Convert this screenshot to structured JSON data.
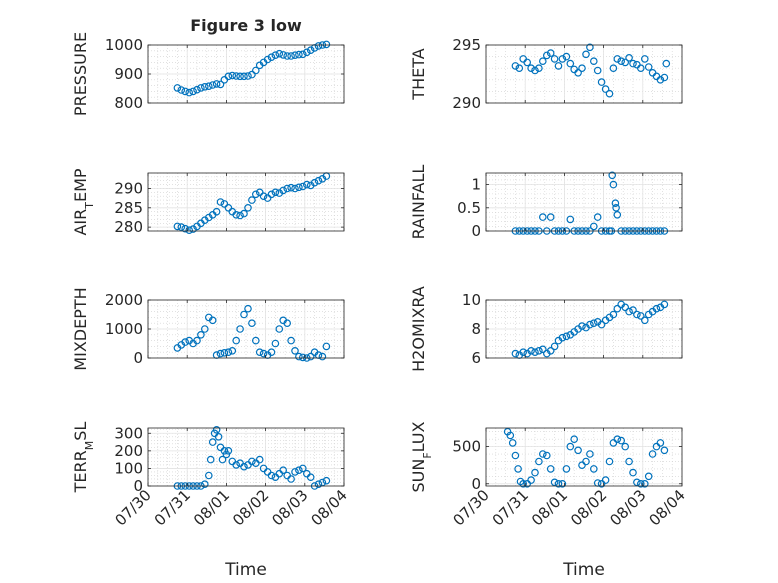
{
  "chart_data": [
    {
      "type": "scatter",
      "title": "Figure 3 low",
      "ylabel": "PRESSURE",
      "xlabel": "",
      "ylim": [
        800,
        1000
      ],
      "yticks": [
        800,
        900,
        1000
      ],
      "xlim": [
        0,
        5
      ],
      "xticks": [
        0,
        1,
        2,
        3,
        4,
        5
      ],
      "xticklabels": [
        "07/30",
        "07/31",
        "08/01",
        "08/02",
        "08/03",
        "08/04"
      ],
      "grid": true,
      "x": [
        0.75,
        0.85,
        0.95,
        1.05,
        1.15,
        1.25,
        1.35,
        1.45,
        1.55,
        1.65,
        1.75,
        1.85,
        1.95,
        2.05,
        2.15,
        2.25,
        2.35,
        2.45,
        2.55,
        2.65,
        2.75,
        2.85,
        2.95,
        3.05,
        3.15,
        3.25,
        3.35,
        3.45,
        3.55,
        3.65,
        3.75,
        3.85,
        3.95,
        4.05,
        4.15,
        4.25,
        4.35,
        4.45,
        4.55
      ],
      "y": [
        852,
        845,
        840,
        836,
        840,
        846,
        852,
        856,
        858,
        862,
        866,
        864,
        880,
        892,
        895,
        893,
        892,
        892,
        893,
        898,
        912,
        930,
        940,
        950,
        958,
        965,
        970,
        966,
        962,
        962,
        965,
        967,
        968,
        975,
        982,
        990,
        997,
        1000,
        1002
      ]
    },
    {
      "type": "scatter",
      "title": "",
      "ylabel": "THETA",
      "xlabel": "",
      "ylim": [
        290,
        295
      ],
      "yticks": [
        290,
        295
      ],
      "xlim": [
        0,
        5
      ],
      "xticks": [
        0,
        1,
        2,
        3,
        4,
        5
      ],
      "xticklabels": [
        "07/30",
        "07/31",
        "08/01",
        "08/02",
        "08/03",
        "08/04"
      ],
      "grid": true,
      "x": [
        0.75,
        0.85,
        0.95,
        1.05,
        1.15,
        1.25,
        1.35,
        1.45,
        1.55,
        1.65,
        1.75,
        1.85,
        1.95,
        2.05,
        2.15,
        2.25,
        2.35,
        2.45,
        2.55,
        2.65,
        2.75,
        2.85,
        2.95,
        3.05,
        3.15,
        3.25,
        3.35,
        3.45,
        3.55,
        3.65,
        3.75,
        3.85,
        3.95,
        4.05,
        4.15,
        4.25,
        4.35,
        4.45,
        4.55,
        4.6
      ],
      "y": [
        293.2,
        293.0,
        293.8,
        293.5,
        293.0,
        292.8,
        293.0,
        293.6,
        294.1,
        294.3,
        293.8,
        293.2,
        293.8,
        294.0,
        293.4,
        292.9,
        292.6,
        293.0,
        294.2,
        294.8,
        293.6,
        292.8,
        291.8,
        291.2,
        290.8,
        293.0,
        293.8,
        293.6,
        293.5,
        293.9,
        293.4,
        293.3,
        293.0,
        293.8,
        293.1,
        292.6,
        292.3,
        292.0,
        292.2,
        293.4
      ]
    },
    {
      "type": "scatter",
      "title": "",
      "ylabel": "AIR",
      "ylabel_sub": "T",
      "ylabel_rest": "EMP",
      "xlabel": "",
      "ylim": [
        279,
        294
      ],
      "yticks": [
        280,
        285,
        290
      ],
      "xlim": [
        0,
        5
      ],
      "xticks": [
        0,
        1,
        2,
        3,
        4,
        5
      ],
      "xticklabels": [
        "07/30",
        "07/31",
        "08/01",
        "08/02",
        "08/03",
        "08/04"
      ],
      "grid": true,
      "x": [
        0.75,
        0.85,
        0.95,
        1.05,
        1.15,
        1.25,
        1.35,
        1.45,
        1.55,
        1.65,
        1.75,
        1.85,
        1.95,
        2.05,
        2.15,
        2.25,
        2.35,
        2.45,
        2.55,
        2.65,
        2.75,
        2.85,
        2.95,
        3.05,
        3.15,
        3.25,
        3.35,
        3.45,
        3.55,
        3.65,
        3.75,
        3.85,
        3.95,
        4.05,
        4.15,
        4.25,
        4.35,
        4.45,
        4.55
      ],
      "y": [
        280.2,
        280.0,
        279.6,
        279.2,
        279.5,
        280.2,
        281.0,
        281.8,
        282.5,
        283.2,
        284.0,
        286.5,
        286.0,
        285.0,
        284.0,
        283.2,
        283.0,
        283.5,
        285.0,
        287.0,
        288.5,
        289.0,
        288.0,
        287.5,
        288.5,
        289.0,
        288.8,
        289.5,
        290.0,
        290.2,
        290.0,
        290.3,
        290.5,
        291.0,
        290.8,
        291.5,
        292.0,
        292.5,
        293.2
      ]
    },
    {
      "type": "scatter",
      "title": "",
      "ylabel": "RAINFALL",
      "xlabel": "",
      "ylim": [
        0,
        1.25
      ],
      "yticks": [
        0,
        0.5,
        1
      ],
      "xlim": [
        0,
        5
      ],
      "xticks": [
        0,
        1,
        2,
        3,
        4,
        5
      ],
      "xticklabels": [
        "07/30",
        "07/31",
        "08/01",
        "08/02",
        "08/03",
        "08/04"
      ],
      "grid": true,
      "x": [
        0.75,
        0.85,
        0.95,
        1.05,
        1.15,
        1.25,
        1.35,
        1.45,
        1.55,
        1.65,
        1.75,
        1.85,
        1.95,
        2.05,
        2.15,
        2.25,
        2.35,
        2.45,
        2.55,
        2.65,
        2.75,
        2.85,
        2.95,
        3.05,
        3.15,
        3.2,
        3.22,
        3.25,
        3.3,
        3.32,
        3.35,
        3.45,
        3.55,
        3.65,
        3.75,
        3.85,
        3.95,
        4.05,
        4.15,
        4.25,
        4.35,
        4.45,
        4.55
      ],
      "y": [
        0,
        0,
        0,
        0,
        0,
        0,
        0,
        0.3,
        0,
        0.3,
        0,
        0,
        0,
        0,
        0.25,
        0,
        0,
        0,
        0,
        0,
        0.1,
        0.3,
        0,
        0,
        0,
        0,
        1.2,
        1.0,
        0.6,
        0.5,
        0.35,
        0,
        0,
        0,
        0,
        0,
        0,
        0,
        0,
        0,
        0,
        0,
        0
      ]
    },
    {
      "type": "scatter",
      "title": "",
      "ylabel": "MIXDEPTH",
      "xlabel": "",
      "ylim": [
        0,
        2000
      ],
      "yticks": [
        0,
        1000,
        2000
      ],
      "xlim": [
        0,
        5
      ],
      "xticks": [
        0,
        1,
        2,
        3,
        4,
        5
      ],
      "xticklabels": [
        "07/30",
        "07/31",
        "08/01",
        "08/02",
        "08/03",
        "08/04"
      ],
      "grid": true,
      "x": [
        0.75,
        0.85,
        0.95,
        1.05,
        1.15,
        1.25,
        1.35,
        1.45,
        1.55,
        1.65,
        1.75,
        1.85,
        1.95,
        2.05,
        2.15,
        2.25,
        2.35,
        2.45,
        2.55,
        2.65,
        2.75,
        2.85,
        2.95,
        3.05,
        3.15,
        3.25,
        3.35,
        3.45,
        3.55,
        3.65,
        3.75,
        3.85,
        3.95,
        4.05,
        4.15,
        4.25,
        4.35,
        4.45,
        4.55
      ],
      "y": [
        350,
        450,
        550,
        600,
        500,
        600,
        800,
        1000,
        1400,
        1300,
        100,
        150,
        180,
        200,
        250,
        600,
        1000,
        1500,
        1700,
        1200,
        600,
        200,
        150,
        100,
        200,
        500,
        1000,
        1300,
        1200,
        600,
        250,
        50,
        20,
        0,
        50,
        200,
        100,
        50,
        400
      ]
    },
    {
      "type": "scatter",
      "title": "",
      "ylabel": "H2OMIXRA",
      "xlabel": "",
      "ylim": [
        6,
        10
      ],
      "yticks": [
        6,
        8,
        10
      ],
      "xlim": [
        0,
        5
      ],
      "xticks": [
        0,
        1,
        2,
        3,
        4,
        5
      ],
      "xticklabels": [
        "07/30",
        "07/31",
        "08/01",
        "08/02",
        "08/03",
        "08/04"
      ],
      "grid": true,
      "x": [
        0.75,
        0.85,
        0.95,
        1.05,
        1.15,
        1.25,
        1.35,
        1.45,
        1.55,
        1.65,
        1.75,
        1.85,
        1.95,
        2.05,
        2.15,
        2.25,
        2.35,
        2.45,
        2.55,
        2.65,
        2.75,
        2.85,
        2.95,
        3.05,
        3.15,
        3.25,
        3.35,
        3.45,
        3.55,
        3.65,
        3.75,
        3.85,
        3.95,
        4.05,
        4.15,
        4.25,
        4.35,
        4.45,
        4.55
      ],
      "y": [
        6.3,
        6.2,
        6.4,
        6.3,
        6.5,
        6.4,
        6.5,
        6.6,
        6.3,
        6.5,
        6.8,
        7.2,
        7.4,
        7.5,
        7.6,
        7.8,
        8.0,
        8.2,
        8.1,
        8.3,
        8.4,
        8.5,
        8.3,
        8.6,
        8.8,
        9.0,
        9.4,
        9.7,
        9.5,
        9.2,
        9.3,
        9.0,
        8.9,
        8.6,
        9.0,
        9.2,
        9.4,
        9.5,
        9.7
      ]
    },
    {
      "type": "scatter",
      "title": "",
      "ylabel": "TERR",
      "ylabel_sub": "M",
      "ylabel_rest": "SL",
      "xlabel": "Time",
      "ylim": [
        0,
        330
      ],
      "yticks": [
        0,
        100,
        200,
        300
      ],
      "xlim": [
        0,
        5
      ],
      "xticks": [
        0,
        1,
        2,
        3,
        4,
        5
      ],
      "xticklabels": [
        "07/30",
        "07/31",
        "08/01",
        "08/02",
        "08/03",
        "08/04"
      ],
      "grid": true,
      "x": [
        0.75,
        0.85,
        0.95,
        1.05,
        1.15,
        1.25,
        1.35,
        1.45,
        1.55,
        1.6,
        1.65,
        1.7,
        1.75,
        1.8,
        1.85,
        1.9,
        1.95,
        2.0,
        2.05,
        2.15,
        2.25,
        2.35,
        2.45,
        2.55,
        2.65,
        2.75,
        2.85,
        2.95,
        3.05,
        3.15,
        3.25,
        3.35,
        3.45,
        3.55,
        3.65,
        3.75,
        3.85,
        3.95,
        4.05,
        4.15,
        4.25,
        4.35,
        4.45,
        4.55
      ],
      "y": [
        0,
        0,
        0,
        0,
        0,
        0,
        0,
        10,
        60,
        150,
        250,
        300,
        320,
        280,
        220,
        150,
        200,
        180,
        200,
        140,
        120,
        130,
        110,
        120,
        140,
        130,
        150,
        100,
        80,
        60,
        50,
        70,
        90,
        60,
        40,
        80,
        90,
        100,
        70,
        50,
        0,
        10,
        20,
        30
      ]
    },
    {
      "type": "scatter",
      "title": "",
      "ylabel": "SUN",
      "ylabel_sub": "F",
      "ylabel_rest": "LUX",
      "xlabel": "Time",
      "ylim": [
        -30,
        750
      ],
      "yticks": [
        0,
        500
      ],
      "xlim": [
        0,
        5
      ],
      "xticks": [
        0,
        1,
        2,
        3,
        4,
        5
      ],
      "xticklabels": [
        "07/30",
        "07/31",
        "08/01",
        "08/02",
        "08/03",
        "08/04"
      ],
      "grid": true,
      "x": [
        0.55,
        0.62,
        0.68,
        0.75,
        0.82,
        0.88,
        0.95,
        1.05,
        1.15,
        1.25,
        1.35,
        1.45,
        1.55,
        1.65,
        1.75,
        1.85,
        1.95,
        2.05,
        2.15,
        2.25,
        2.35,
        2.45,
        2.55,
        2.65,
        2.75,
        2.85,
        2.95,
        3.05,
        3.15,
        3.25,
        3.35,
        3.45,
        3.55,
        3.65,
        3.75,
        3.85,
        3.95,
        4.05,
        4.15,
        4.25,
        4.35,
        4.45,
        4.55
      ],
      "y": [
        700,
        650,
        550,
        380,
        200,
        30,
        0,
        0,
        50,
        150,
        300,
        400,
        380,
        200,
        20,
        0,
        0,
        200,
        500,
        600,
        450,
        250,
        300,
        400,
        200,
        10,
        0,
        50,
        300,
        550,
        600,
        580,
        500,
        300,
        150,
        20,
        0,
        0,
        100,
        400,
        500,
        550,
        450
      ]
    }
  ]
}
